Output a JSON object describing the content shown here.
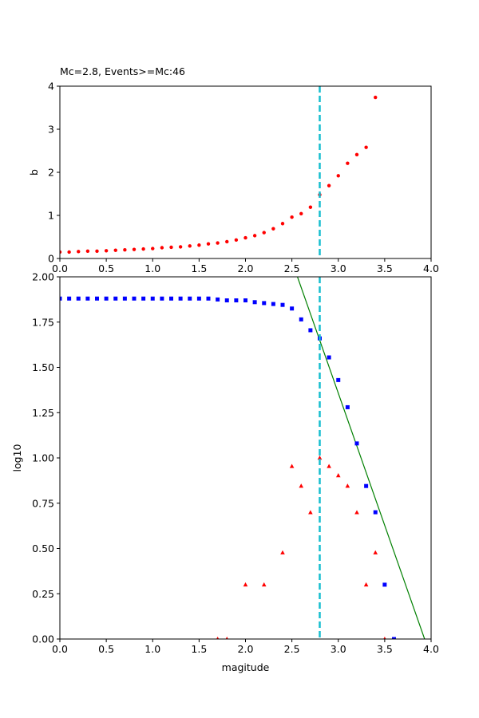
{
  "chart_data": [
    {
      "type": "scatter",
      "title": "Mc=2.8, Events>=Mc:46",
      "xlabel": "",
      "ylabel": "b",
      "xlim": [
        0,
        4.0
      ],
      "ylim": [
        0,
        4
      ],
      "xticks": [
        "0.0",
        "0.5",
        "1.0",
        "1.5",
        "2.0",
        "2.5",
        "3.0",
        "3.5",
        "4.0"
      ],
      "yticks": [
        "0",
        "1",
        "2",
        "3",
        "4"
      ],
      "grid": false,
      "vline": {
        "x": 2.8,
        "color": "#17becf"
      },
      "series": [
        {
          "marker": "circle",
          "color": "#ff0000",
          "x": [
            0.0,
            0.1,
            0.2,
            0.3,
            0.4,
            0.5,
            0.6,
            0.7,
            0.8,
            0.9,
            1.0,
            1.1,
            1.2,
            1.3,
            1.4,
            1.5,
            1.6,
            1.7,
            1.8,
            1.9,
            2.0,
            2.1,
            2.2,
            2.3,
            2.4,
            2.5,
            2.6,
            2.7,
            2.8,
            2.9,
            3.0,
            3.1,
            3.2,
            3.3,
            3.4
          ],
          "y": [
            0.15,
            0.15,
            0.16,
            0.17,
            0.17,
            0.18,
            0.19,
            0.2,
            0.21,
            0.22,
            0.23,
            0.25,
            0.26,
            0.27,
            0.29,
            0.31,
            0.34,
            0.36,
            0.39,
            0.43,
            0.48,
            0.53,
            0.6,
            0.69,
            0.81,
            0.96,
            1.04,
            1.19,
            1.48,
            1.69,
            1.92,
            2.21,
            2.41,
            2.58,
            3.74
          ]
        }
      ]
    },
    {
      "type": "scatter",
      "title": "",
      "xlabel": "magitude",
      "ylabel": "log10",
      "xlim": [
        0,
        4.0
      ],
      "ylim": [
        0,
        2.0
      ],
      "xticks": [
        "0.0",
        "0.5",
        "1.0",
        "1.5",
        "2.0",
        "2.5",
        "3.0",
        "3.5",
        "4.0"
      ],
      "yticks": [
        "0.00",
        "0.25",
        "0.50",
        "0.75",
        "1.00",
        "1.25",
        "1.50",
        "1.75",
        "2.00"
      ],
      "grid": false,
      "vline": {
        "x": 2.8,
        "color": "#17becf"
      },
      "fit_line": {
        "color": "#008000",
        "x": [
          2.56,
          3.93
        ],
        "y": [
          2.0,
          0.0
        ]
      },
      "series": [
        {
          "marker": "square",
          "color": "#0000ff",
          "x": [
            0.0,
            0.1,
            0.2,
            0.3,
            0.4,
            0.5,
            0.6,
            0.7,
            0.8,
            0.9,
            1.0,
            1.1,
            1.2,
            1.3,
            1.4,
            1.5,
            1.6,
            1.7,
            1.8,
            1.9,
            2.0,
            2.1,
            2.2,
            2.3,
            2.4,
            2.5,
            2.6,
            2.7,
            2.8,
            2.9,
            3.0,
            3.1,
            3.2,
            3.3,
            3.4,
            3.5,
            3.6
          ],
          "y": [
            1.88,
            1.88,
            1.88,
            1.88,
            1.88,
            1.88,
            1.88,
            1.88,
            1.88,
            1.88,
            1.88,
            1.88,
            1.88,
            1.88,
            1.88,
            1.88,
            1.88,
            1.875,
            1.87,
            1.87,
            1.87,
            1.86,
            1.855,
            1.85,
            1.845,
            1.825,
            1.765,
            1.705,
            1.66,
            1.555,
            1.43,
            1.28,
            1.08,
            0.845,
            0.7,
            0.3,
            0.0
          ]
        },
        {
          "marker": "triangle",
          "color": "#ff0000",
          "x": [
            1.7,
            1.8,
            2.0,
            2.2,
            2.4,
            2.5,
            2.6,
            2.7,
            2.8,
            2.9,
            3.0,
            3.1,
            3.2,
            3.3,
            3.4,
            3.5
          ],
          "y": [
            0.0,
            0.0,
            0.3,
            0.3,
            0.477,
            0.954,
            0.845,
            0.699,
            1.0,
            0.954,
            0.903,
            0.845,
            0.699,
            0.3,
            0.477,
            0.0
          ]
        }
      ]
    }
  ]
}
